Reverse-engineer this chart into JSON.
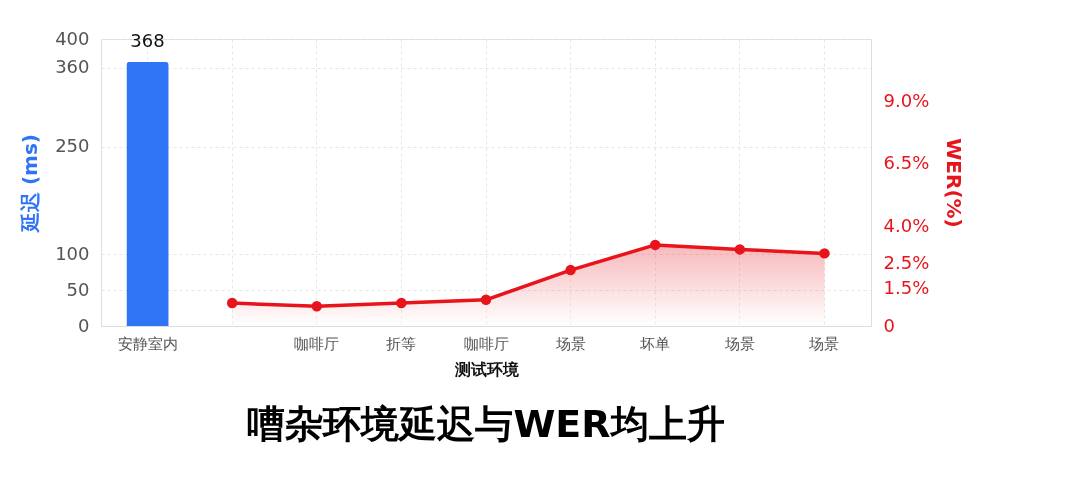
{
  "chart_data": {
    "type": "bar",
    "title": "嘈杂环境延迟与WER均上升",
    "xlabel": "测试环境",
    "ylabel": "延迟 (ms)",
    "y2label": "WER(%)",
    "categories": [
      "安静室内",
      null,
      "咖啡厅",
      "折等",
      "咖啡厅",
      "场景",
      "坏单",
      "场景",
      "场景"
    ],
    "series": [
      {
        "color": "#2f74f5",
        "values": [
          368,
          null,
          null,
          null,
          null,
          null,
          null,
          null,
          null
        ],
        "value_labels": [
          "368",
          null,
          null,
          null,
          null,
          null,
          null,
          null,
          null
        ]
      },
      {
        "type": "area",
        "axis": "y2",
        "color": "#e8141c",
        "marker": "circle",
        "values": [
          null,
          0.92,
          0.79,
          0.92,
          1.05,
          2.24,
          3.25,
          3.07,
          2.91
        ]
      }
    ],
    "ylim": [
      0,
      400
    ],
    "yticks": [
      0,
      50,
      100,
      250,
      360,
      400
    ],
    "y2lim": [
      0,
      11.5
    ],
    "y2ticks": [
      0,
      {
        "value": 2.5,
        "label": "2.5%"
      },
      {
        "value": 4,
        "label": "4.0%"
      },
      {
        "value": 6.5,
        "label": "6.5%"
      },
      {
        "value": 9,
        "label": "9.0%"
      },
      {
        "value": 1.5,
        "label": "1.5%"
      }
    ],
    "grid": true
  }
}
